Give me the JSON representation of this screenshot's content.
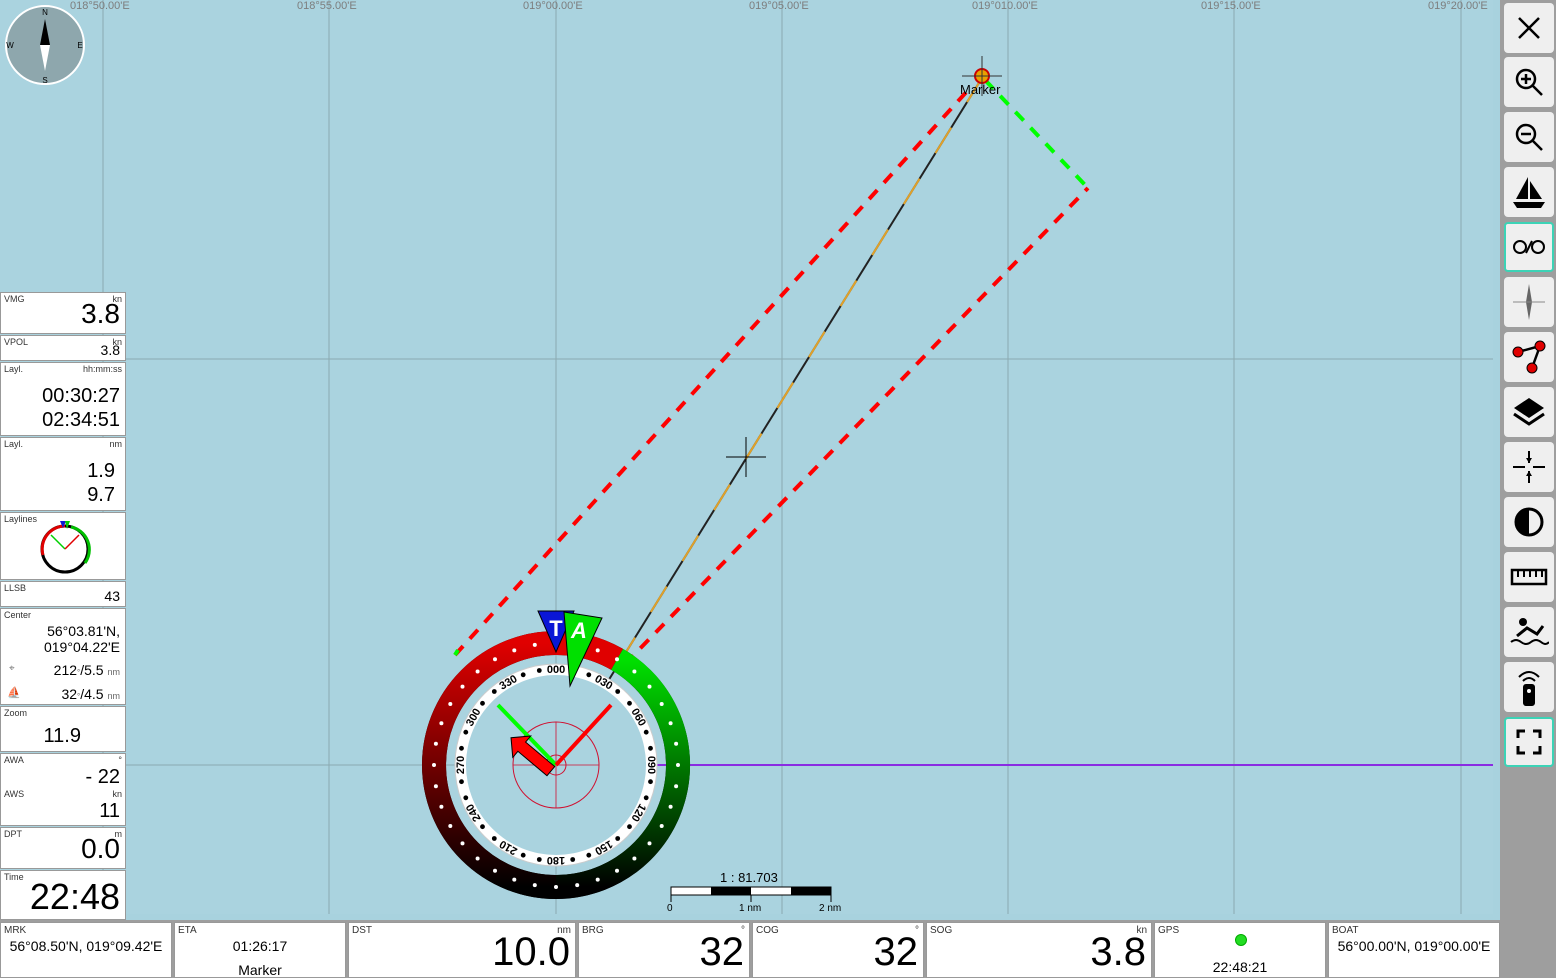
{
  "map": {
    "lon_labels": [
      "018°50.00'E",
      "018°55.00'E",
      "019°00.00'E",
      "019°05.00'E",
      "019°010.00'E",
      "019°15.00'E",
      "019°20.00'E"
    ],
    "marker_label": "Marker",
    "scale": {
      "ratio": "1 : 81.703",
      "tick0": "0",
      "tick1": "1 nm",
      "tick2": "2 nm"
    },
    "compass_rose": {
      "n": "N",
      "e": "E",
      "s": "S",
      "w": "W"
    },
    "instrument": {
      "labels": [
        "000",
        "030",
        "060",
        "090",
        "120",
        "150",
        "180",
        "210",
        "240",
        "270",
        "300",
        "330"
      ],
      "true_wind_letter": "T",
      "apparent_wind_letter": "A"
    },
    "colors": {
      "port": "#ff0000",
      "starboard": "#00ff00",
      "course_line": "#8a2be2"
    }
  },
  "left_panel": {
    "vmg": {
      "caption": "VMG",
      "unit": "kn",
      "value": "3.8"
    },
    "vpol": {
      "caption": "VPOL",
      "unit": "kn",
      "value": "3.8"
    },
    "layl_time": {
      "caption": "Layl.",
      "unit": "hh:mm:ss",
      "value1": "00:30:27",
      "value2": "02:34:51"
    },
    "layl_dist": {
      "caption": "Layl.",
      "unit": "nm",
      "value1": "1.9",
      "value2": "9.7"
    },
    "laylines": {
      "caption": "Laylines"
    },
    "llsb": {
      "caption": "LLSB",
      "value": "43"
    },
    "center": {
      "caption": "Center",
      "lat": "56°03.81'N,",
      "lon": "019°04.22'E",
      "row1_value": "212",
      "row1_unit1": "°",
      "row1_sep": "/5.5",
      "row1_unit2": "nm",
      "row2_value": "32",
      "row2_unit1": "°",
      "row2_sep": "/4.5",
      "row2_unit2": "nm"
    },
    "zoom": {
      "caption": "Zoom",
      "value": "11.9"
    },
    "awa": {
      "caption": "AWA",
      "unit": "°",
      "value": "- 22"
    },
    "aws": {
      "caption": "AWS",
      "unit": "kn",
      "value": "11"
    },
    "dpt": {
      "caption": "DPT",
      "unit": "m",
      "value": "0.0"
    },
    "time": {
      "caption": "Time",
      "value": "22:48"
    }
  },
  "bottom": {
    "mrk": {
      "caption": "MRK",
      "value": "56°08.50'N, 019°09.42'E"
    },
    "eta": {
      "caption": "ETA",
      "time": "01:26:17",
      "name": "Marker"
    },
    "dst": {
      "caption": "DST",
      "unit": "nm",
      "value": "10.0"
    },
    "brg": {
      "caption": "BRG",
      "unit": "°",
      "value": "32"
    },
    "cog": {
      "caption": "COG",
      "unit": "°",
      "value": "32"
    },
    "sog": {
      "caption": "SOG",
      "unit": "kn",
      "value": "3.8"
    },
    "gps": {
      "caption": "GPS",
      "time": "22:48:21"
    },
    "boat": {
      "caption": "BOAT",
      "value": "56°00.00'N, 019°00.00'E"
    }
  },
  "toolbar": {
    "buttons": [
      "close-icon",
      "zoom-in-icon",
      "zoom-out-icon",
      "boat-icon",
      "anchor-watch-icon",
      "compass-north-icon",
      "route-icon",
      "layers-icon",
      "center-lock-icon",
      "night-mode-icon",
      "measure-ruler-icon",
      "man-overboard-icon",
      "remote-control-icon",
      "fullscreen-icon"
    ]
  }
}
